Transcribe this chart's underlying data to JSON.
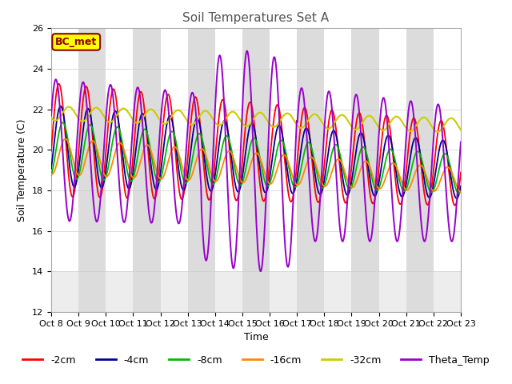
{
  "title": "Soil Temperatures Set A",
  "xlabel": "Time",
  "ylabel": "Soil Temperature (C)",
  "ylim": [
    12,
    26
  ],
  "xlim": [
    0,
    15
  ],
  "x_tick_labels": [
    "Oct 8",
    "Oct 9",
    "Oct 10",
    "Oct 11",
    "Oct 12",
    "Oct 13",
    "Oct 14",
    "Oct 15",
    "Oct 16",
    "Oct 17",
    "Oct 18",
    "Oct 19",
    "Oct 20",
    "Oct 21",
    "Oct 22",
    "Oct 23"
  ],
  "annotation_text": "BC_met",
  "annotation_bg": "#FFFF00",
  "annotation_fg": "#8B0000",
  "series_colors": {
    "-2cm": "#FF0000",
    "-4cm": "#000099",
    "-8cm": "#00BB00",
    "-16cm": "#FF8800",
    "-32cm": "#CCCC00",
    "Theta_Temp": "#9900CC"
  },
  "bg_band_color": "#DCDCDC",
  "title_color": "#555555",
  "title_fontsize": 11,
  "axis_fontsize": 9,
  "tick_fontsize": 8
}
